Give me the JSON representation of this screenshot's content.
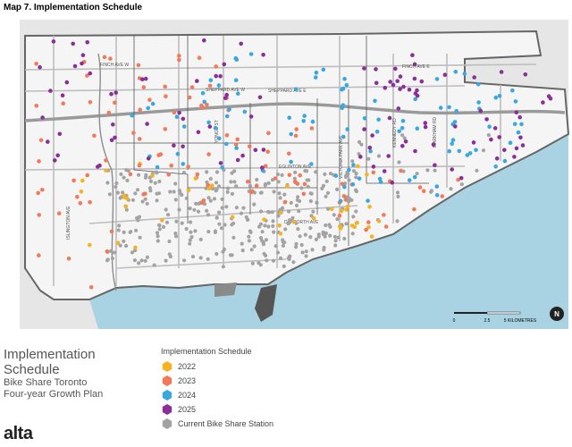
{
  "header": {
    "title": "Map 7.  Implementation Schedule"
  },
  "map": {
    "road_labels": [
      "FINCH AVE W",
      "SHEPPARD AVE W",
      "SHEPPARD AVE E",
      "FINCH AVE E",
      "EGLINTON AVE",
      "DANFORTH AVE",
      "VICTORIA PARK AVE",
      "KENNEDY RD",
      "ISLINGTON AVE",
      "YONGE ST",
      "MARKHAM RD"
    ],
    "scale": [
      "0",
      "2.5",
      "5 KILOMETRES"
    ],
    "north": "N"
  },
  "side": {
    "title": "Implementation Schedule",
    "subtitle": "Bike Share Toronto",
    "subtitle2": "Four-year Growth Plan"
  },
  "legend": {
    "title": "Implementation Schedule",
    "items": [
      {
        "label": "2022",
        "color": "#f5b324"
      },
      {
        "label": "2023",
        "color": "#f07a5a"
      },
      {
        "label": "2024",
        "color": "#3aa7de"
      },
      {
        "label": "2025",
        "color": "#8a2f97"
      },
      {
        "label": "Current Bike Share Station",
        "color": "#a3a3a3"
      }
    ]
  },
  "logo": "alta"
}
